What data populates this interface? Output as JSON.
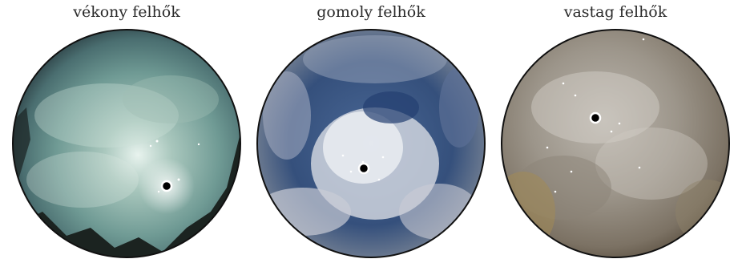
{
  "panels": [
    {
      "caption": "vékony felhők",
      "image": "thin-clouds-allsky-photo",
      "sky_color": "#6f9a94"
    },
    {
      "caption": "gomoly felhők",
      "image": "cumulus-clouds-allsky-photo",
      "sky_color": "#3c5580"
    },
    {
      "caption": "vastag felhők",
      "image": "thick-clouds-allsky-photo",
      "sky_color": "#8f877b"
    }
  ]
}
